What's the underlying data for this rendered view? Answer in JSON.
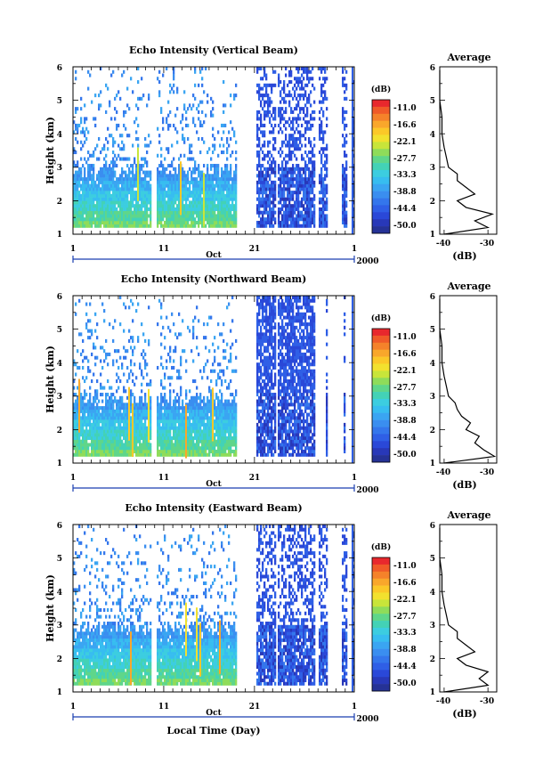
{
  "figure": {
    "xlabel": "Local Time (Day)"
  },
  "colorbar": {
    "unit": "(dB)",
    "ticks": [
      "-11.0",
      "-16.6",
      "-22.1",
      "-27.7",
      "-33.3",
      "-38.8",
      "-44.4",
      "-50.0"
    ],
    "colors": [
      "#e8282d",
      "#f05a28",
      "#f5822a",
      "#f9a72b",
      "#fbc828",
      "#f2e12e",
      "#c8e53a",
      "#8fdc5a",
      "#5fd68a",
      "#43d2b6",
      "#3ccde0",
      "#37bdf0",
      "#3aa5f2",
      "#3a8ef0",
      "#3476ec",
      "#2f5fe6",
      "#2a48d8",
      "#2838b8",
      "#253296"
    ]
  },
  "chart_data": [
    {
      "type": "heatmap",
      "title": "Echo Intensity (Vertical Beam)",
      "ylabel": "Height (km)",
      "ylim": [
        1,
        6
      ],
      "yticks": [
        "1",
        "2",
        "3",
        "4",
        "5",
        "6"
      ],
      "xticks": [
        "1",
        "11",
        "21",
        "1"
      ],
      "month_label": "Oct",
      "year_label": "2000",
      "profile": {
        "title": "Average",
        "xlabel": "(dB)",
        "xticks": [
          "-40",
          "-30"
        ],
        "xlim": [
          -41,
          -28
        ],
        "height": [
          1.0,
          1.2,
          1.4,
          1.6,
          1.8,
          2.0,
          2.2,
          2.4,
          2.6,
          2.8,
          3.0,
          3.3,
          3.6,
          4.0,
          4.5,
          5.0,
          5.5,
          5.9
        ],
        "values": [
          -40,
          -30,
          -33,
          -29,
          -35,
          -37,
          -33,
          -35,
          -37,
          -37,
          -39,
          -39.5,
          -40,
          -40.5,
          -40.5,
          -41,
          -41,
          -41
        ]
      }
    },
    {
      "type": "heatmap",
      "title": "Echo Intensity (Northward Beam)",
      "ylabel": "Height (km)",
      "ylim": [
        1,
        6
      ],
      "yticks": [
        "1",
        "2",
        "3",
        "4",
        "5",
        "6"
      ],
      "xticks": [
        "1",
        "11",
        "21",
        "1"
      ],
      "month_label": "Oct",
      "year_label": "2000",
      "profile": {
        "title": "Average",
        "xlabel": "(dB)",
        "xticks": [
          "-40",
          "-30"
        ],
        "xlim": [
          -41,
          -28
        ],
        "height": [
          1.0,
          1.2,
          1.4,
          1.6,
          1.8,
          2.0,
          2.2,
          2.4,
          2.6,
          2.8,
          3.0,
          3.3,
          3.6,
          4.0,
          4.5,
          5.0,
          5.5,
          5.9
        ],
        "values": [
          -40,
          -28.5,
          -31,
          -33,
          -32,
          -35,
          -34,
          -36,
          -37,
          -37.5,
          -39,
          -39.5,
          -40,
          -40.5,
          -40.5,
          -41,
          -41,
          -41
        ]
      }
    },
    {
      "type": "heatmap",
      "title": "Echo Intensity (Eastward Beam)",
      "ylabel": "Height (km)",
      "ylim": [
        1,
        6
      ],
      "yticks": [
        "1",
        "2",
        "3",
        "4",
        "5",
        "6"
      ],
      "xticks": [
        "1",
        "11",
        "21",
        "1"
      ],
      "month_label": "Oct",
      "year_label": "2000",
      "profile": {
        "title": "Average",
        "xlabel": "(dB)",
        "xticks": [
          "-40",
          "-30"
        ],
        "xlim": [
          -41,
          -28
        ],
        "height": [
          1.0,
          1.2,
          1.4,
          1.6,
          1.8,
          2.0,
          2.2,
          2.4,
          2.6,
          2.8,
          3.0,
          3.3,
          3.6,
          4.0,
          4.5,
          5.0,
          5.5,
          5.9
        ],
        "values": [
          -40,
          -30,
          -32,
          -30,
          -35,
          -37,
          -33,
          -35,
          -37,
          -37,
          -39,
          -39.5,
          -40,
          -40.5,
          -40.5,
          -41,
          -41,
          -41
        ]
      }
    }
  ]
}
